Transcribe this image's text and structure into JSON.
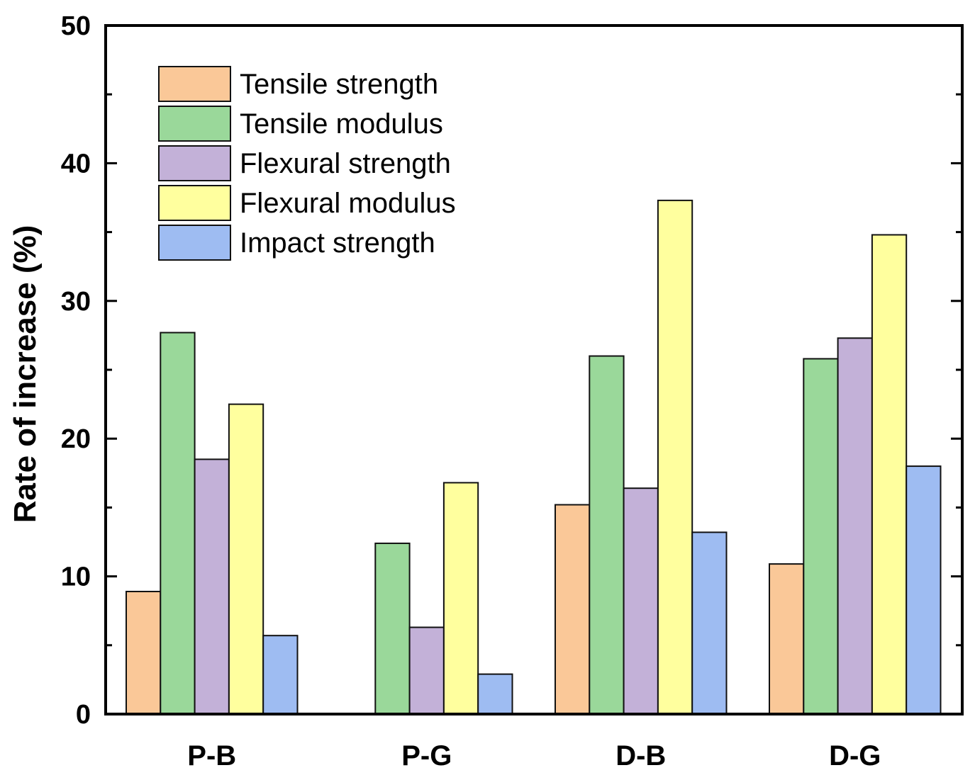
{
  "chart_data": {
    "type": "bar",
    "title": "",
    "xlabel": "",
    "ylabel": "Rate of increase (%)",
    "ylim": [
      0,
      50
    ],
    "yticks": [
      "0",
      "10",
      "20",
      "30",
      "40",
      "50"
    ],
    "categories": [
      "P-B",
      "P-G",
      "D-B",
      "D-G"
    ],
    "legend_position": "top-left",
    "series": [
      {
        "name": "Tensile strength",
        "color": "#FAC898",
        "values": [
          8.9,
          0,
          15.2,
          10.9
        ]
      },
      {
        "name": "Tensile modulus",
        "color": "#9AD89A",
        "values": [
          27.7,
          12.4,
          26.0,
          25.8
        ]
      },
      {
        "name": "Flexural strength",
        "color": "#C3B1D8",
        "values": [
          18.5,
          6.3,
          16.4,
          27.3
        ]
      },
      {
        "name": "Flexural modulus",
        "color": "#FFFF9E",
        "values": [
          22.5,
          16.8,
          37.3,
          34.8
        ]
      },
      {
        "name": "Impact strength",
        "color": "#9EBCF2",
        "values": [
          5.7,
          2.9,
          13.2,
          18.0
        ]
      }
    ]
  }
}
